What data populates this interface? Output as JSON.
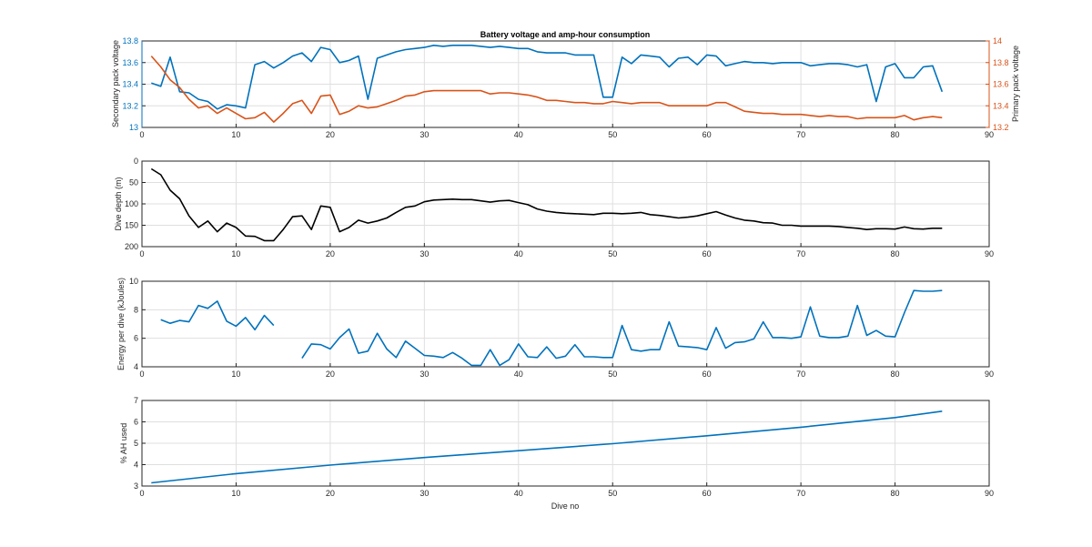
{
  "figure_title": "Battery voltage and amp-hour consumption",
  "colors": {
    "blue": "#0072BD",
    "orange": "#D95319",
    "black": "#000000",
    "axis": "#262626",
    "grid": "#dfdfdf"
  },
  "chart_data": [
    {
      "type": "line",
      "title": "Battery voltage and amp-hour consumption",
      "xlabel": "",
      "ylabel": "Secondary pack voltage",
      "ylabel_right": "Primary pack voltage",
      "xlim": [
        0,
        90
      ],
      "ylim": [
        13,
        13.8
      ],
      "ylim_right": [
        13.2,
        14
      ],
      "grid": true,
      "x_ticks": [
        "0",
        "10",
        "20",
        "30",
        "40",
        "50",
        "60",
        "70",
        "80",
        "90"
      ],
      "y_ticks": [
        "13",
        "13.2",
        "13.4",
        "13.6",
        "13.8"
      ],
      "y_ticks_right": [
        "13.2",
        "13.4",
        "13.6",
        "13.8",
        "14"
      ],
      "series": [
        {
          "axis": "left",
          "color": "#0072BD",
          "x": [
            1,
            2,
            3,
            4,
            5,
            6,
            7,
            8,
            9,
            10,
            11,
            12,
            13,
            14,
            15,
            16,
            17,
            18,
            19,
            20,
            21,
            22,
            23,
            24,
            25,
            26,
            27,
            28,
            29,
            30,
            31,
            32,
            33,
            34,
            35,
            36,
            37,
            38,
            39,
            40,
            41,
            42,
            43,
            44,
            45,
            46,
            47,
            48,
            49,
            50,
            51,
            52,
            53,
            54,
            55,
            56,
            57,
            58,
            59,
            60,
            61,
            62,
            63,
            64,
            65,
            66,
            67,
            68,
            69,
            70,
            71,
            72,
            73,
            74,
            75,
            76,
            77,
            78,
            79,
            80,
            81,
            82,
            83,
            84,
            85
          ],
          "values": [
            13.41,
            13.38,
            13.65,
            13.33,
            13.32,
            13.26,
            13.24,
            13.17,
            13.21,
            13.2,
            13.18,
            13.58,
            13.61,
            13.55,
            13.6,
            13.66,
            13.69,
            13.61,
            13.74,
            13.72,
            13.6,
            13.62,
            13.66,
            13.26,
            13.64,
            13.67,
            13.7,
            13.72,
            13.73,
            13.74,
            13.76,
            13.75,
            13.76,
            13.76,
            13.76,
            13.75,
            13.74,
            13.75,
            13.74,
            13.73,
            13.73,
            13.7,
            13.69,
            13.69,
            13.69,
            13.67,
            13.67,
            13.67,
            13.28,
            13.28,
            13.65,
            13.59,
            13.67,
            13.66,
            13.65,
            13.56,
            13.64,
            13.65,
            13.58,
            13.67,
            13.66,
            13.57,
            13.59,
            13.61,
            13.6,
            13.6,
            13.59,
            13.6,
            13.6,
            13.6,
            13.57,
            13.58,
            13.59,
            13.59,
            13.58,
            13.56,
            13.58,
            13.24,
            13.56,
            13.59,
            13.46,
            13.46,
            13.56,
            13.57,
            13.33
          ]
        },
        {
          "axis": "right",
          "color": "#D95319",
          "x": [
            1,
            2,
            3,
            4,
            5,
            6,
            7,
            8,
            9,
            10,
            11,
            12,
            13,
            14,
            15,
            16,
            17,
            18,
            19,
            20,
            21,
            22,
            23,
            24,
            25,
            26,
            27,
            28,
            29,
            30,
            31,
            32,
            33,
            34,
            35,
            36,
            37,
            38,
            39,
            40,
            41,
            42,
            43,
            44,
            45,
            46,
            47,
            48,
            49,
            50,
            51,
            52,
            53,
            54,
            55,
            56,
            57,
            58,
            59,
            60,
            61,
            62,
            63,
            64,
            65,
            66,
            67,
            68,
            69,
            70,
            71,
            72,
            73,
            74,
            75,
            76,
            77,
            78,
            79,
            80,
            81,
            82,
            83,
            84,
            85
          ],
          "values": [
            13.86,
            13.76,
            13.64,
            13.57,
            13.46,
            13.38,
            13.4,
            13.33,
            13.38,
            13.33,
            13.28,
            13.29,
            13.34,
            13.25,
            13.33,
            13.42,
            13.45,
            13.33,
            13.49,
            13.5,
            13.32,
            13.35,
            13.4,
            13.38,
            13.39,
            13.42,
            13.45,
            13.49,
            13.5,
            13.53,
            13.54,
            13.54,
            13.54,
            13.54,
            13.54,
            13.54,
            13.51,
            13.52,
            13.52,
            13.51,
            13.5,
            13.48,
            13.45,
            13.45,
            13.44,
            13.43,
            13.43,
            13.42,
            13.42,
            13.44,
            13.43,
            13.42,
            13.43,
            13.43,
            13.43,
            13.4,
            13.4,
            13.4,
            13.4,
            13.4,
            13.43,
            13.43,
            13.39,
            13.35,
            13.34,
            13.33,
            13.33,
            13.32,
            13.32,
            13.32,
            13.31,
            13.3,
            13.31,
            13.3,
            13.3,
            13.28,
            13.29,
            13.29,
            13.29,
            13.29,
            13.31,
            13.27,
            13.29,
            13.3,
            13.29
          ]
        }
      ]
    },
    {
      "type": "line",
      "title": "",
      "xlabel": "",
      "ylabel": "Dive depth (m)",
      "xlim": [
        0,
        90
      ],
      "ylim": [
        0,
        200
      ],
      "y_reversed": true,
      "grid": true,
      "x_ticks": [
        "0",
        "10",
        "20",
        "30",
        "40",
        "50",
        "60",
        "70",
        "80",
        "90"
      ],
      "y_ticks": [
        "0",
        "50",
        "100",
        "150",
        "200"
      ],
      "series": [
        {
          "color": "#000000",
          "x": [
            1,
            2,
            3,
            4,
            5,
            6,
            7,
            8,
            9,
            10,
            11,
            12,
            13,
            14,
            15,
            16,
            17,
            18,
            19,
            20,
            21,
            22,
            23,
            24,
            25,
            26,
            27,
            28,
            29,
            30,
            31,
            32,
            33,
            34,
            35,
            36,
            37,
            38,
            39,
            40,
            41,
            42,
            43,
            44,
            45,
            46,
            47,
            48,
            49,
            50,
            51,
            52,
            53,
            54,
            55,
            56,
            57,
            58,
            59,
            60,
            61,
            62,
            63,
            64,
            65,
            66,
            67,
            68,
            69,
            70,
            71,
            72,
            73,
            74,
            75,
            76,
            77,
            78,
            79,
            80,
            81,
            82,
            83,
            84,
            85
          ],
          "values": [
            18,
            32,
            68,
            88,
            128,
            155,
            140,
            165,
            145,
            155,
            175,
            176,
            186,
            186,
            160,
            130,
            128,
            160,
            105,
            108,
            165,
            155,
            138,
            145,
            140,
            133,
            120,
            108,
            105,
            95,
            91,
            90,
            89,
            90,
            90,
            93,
            96,
            93,
            92,
            97,
            102,
            112,
            117,
            120,
            122,
            123,
            124,
            125,
            122,
            122,
            123,
            122,
            120,
            125,
            127,
            130,
            133,
            131,
            128,
            123,
            118,
            126,
            133,
            138,
            140,
            144,
            145,
            150,
            150,
            152,
            152,
            152,
            152,
            153,
            155,
            157,
            160,
            158,
            158,
            159,
            154,
            158,
            159,
            157,
            157
          ]
        }
      ]
    },
    {
      "type": "line",
      "title": "",
      "xlabel": "",
      "ylabel": "Energy per dive (kJoules)",
      "xlim": [
        0,
        90
      ],
      "ylim": [
        4,
        10
      ],
      "grid": true,
      "x_ticks": [
        "0",
        "10",
        "20",
        "30",
        "40",
        "50",
        "60",
        "70",
        "80",
        "90"
      ],
      "y_ticks": [
        "4",
        "6",
        "8",
        "10"
      ],
      "series": [
        {
          "color": "#0072BD",
          "x": [
            2,
            3,
            4,
            5,
            6,
            7,
            8,
            9,
            10,
            11,
            12,
            13,
            14,
            15,
            16,
            17,
            18,
            19,
            20,
            21,
            22,
            23,
            24,
            25,
            26,
            27,
            28,
            29,
            30,
            31,
            32,
            33,
            34,
            35,
            36,
            37,
            38,
            39,
            40,
            41,
            42,
            43,
            44,
            45,
            46,
            47,
            48,
            49,
            50,
            51,
            52,
            53,
            54,
            55,
            56,
            57,
            58,
            59,
            60,
            61,
            62,
            63,
            64,
            65,
            66,
            67,
            68,
            69,
            70,
            71,
            72,
            73,
            74,
            75,
            76,
            77,
            78,
            79,
            80,
            81,
            82,
            83,
            84,
            85
          ],
          "values": [
            7.3,
            7.05,
            7.25,
            7.15,
            8.3,
            8.1,
            8.6,
            7.2,
            6.85,
            7.45,
            6.6,
            7.6,
            6.9,
            null,
            null,
            4.6,
            5.6,
            5.55,
            5.25,
            6.05,
            6.65,
            4.95,
            5.1,
            6.35,
            5.25,
            4.65,
            5.8,
            5.3,
            4.8,
            4.75,
            4.65,
            5.0,
            4.6,
            4.1,
            4.1,
            5.2,
            4.1,
            4.5,
            5.6,
            4.7,
            4.65,
            5.4,
            4.6,
            4.75,
            5.55,
            4.7,
            4.7,
            4.65,
            4.65,
            6.9,
            5.2,
            5.1,
            5.2,
            5.2,
            7.15,
            5.45,
            5.4,
            5.35,
            5.2,
            6.75,
            5.3,
            5.7,
            5.75,
            5.95,
            7.15,
            6.05,
            6.05,
            6.0,
            6.1,
            8.2,
            6.15,
            6.05,
            6.05,
            6.15,
            8.3,
            6.2,
            6.55,
            6.15,
            6.1,
            7.8,
            9.35,
            9.3,
            9.3,
            9.35
          ]
        }
      ]
    },
    {
      "type": "line",
      "title": "",
      "xlabel": "Dive no",
      "ylabel": "% AH used",
      "xlim": [
        0,
        90
      ],
      "ylim": [
        3,
        7
      ],
      "grid": true,
      "x_ticks": [
        "0",
        "10",
        "20",
        "30",
        "40",
        "50",
        "60",
        "70",
        "80",
        "90"
      ],
      "y_ticks": [
        "3",
        "4",
        "5",
        "6",
        "7"
      ],
      "series": [
        {
          "color": "#0072BD",
          "x": [
            1,
            10,
            20,
            30,
            40,
            50,
            60,
            70,
            80,
            85
          ],
          "values": [
            3.15,
            3.58,
            3.98,
            4.33,
            4.65,
            4.98,
            5.35,
            5.75,
            6.2,
            6.5
          ]
        }
      ]
    }
  ]
}
